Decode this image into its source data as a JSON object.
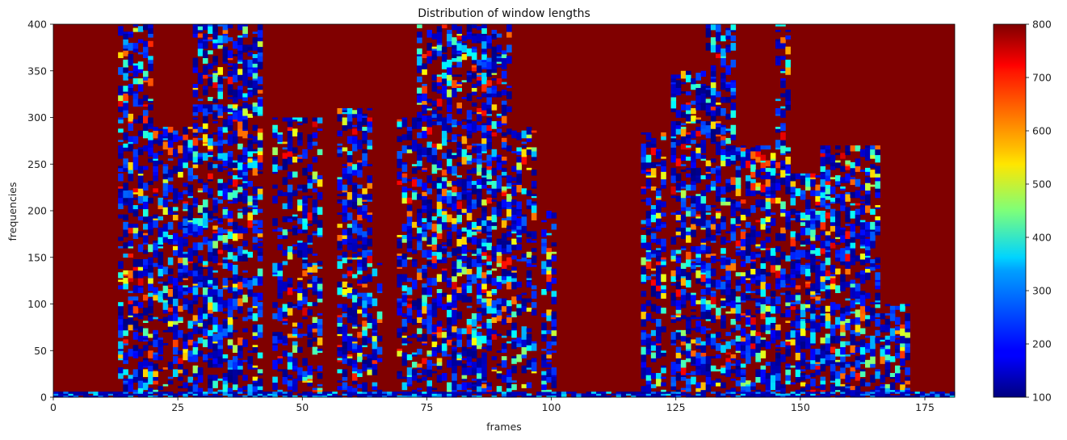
{
  "chart_data": {
    "type": "heatmap",
    "title": "Distribution of window lengths",
    "xlabel": "frames",
    "ylabel": "frequencies",
    "xlim": [
      0,
      181
    ],
    "ylim": [
      0,
      400
    ],
    "xticks": [
      0,
      25,
      50,
      75,
      100,
      125,
      150,
      175
    ],
    "yticks": [
      0,
      50,
      100,
      150,
      200,
      250,
      300,
      350,
      400
    ],
    "colormap": "jet",
    "colorbar": {
      "min": 100,
      "max": 800,
      "ticks": [
        100,
        200,
        300,
        400,
        500,
        600,
        700,
        800
      ]
    },
    "background_value": 800,
    "grid": false,
    "active_columns": [
      {
        "x": [
          13,
          20
        ],
        "y": [
          0,
          400
        ],
        "density": 0.55
      },
      {
        "x": [
          20,
          30
        ],
        "y": [
          0,
          290
        ],
        "density": 0.6
      },
      {
        "x": [
          28,
          36
        ],
        "y": [
          0,
          400
        ],
        "density": 0.6
      },
      {
        "x": [
          36,
          42
        ],
        "y": [
          0,
          400
        ],
        "density": 0.55
      },
      {
        "x": [
          44,
          54
        ],
        "y": [
          0,
          300
        ],
        "density": 0.5
      },
      {
        "x": [
          57,
          64
        ],
        "y": [
          0,
          310
        ],
        "density": 0.6
      },
      {
        "x": [
          64,
          66
        ],
        "y": [
          0,
          150
        ],
        "density": 0.5
      },
      {
        "x": [
          69,
          74
        ],
        "y": [
          0,
          300
        ],
        "density": 0.5
      },
      {
        "x": [
          73,
          80
        ],
        "y": [
          0,
          400
        ],
        "density": 0.55
      },
      {
        "x": [
          80,
          88
        ],
        "y": [
          0,
          400
        ],
        "density": 0.6
      },
      {
        "x": [
          88,
          92
        ],
        "y": [
          0,
          400
        ],
        "density": 0.5
      },
      {
        "x": [
          92,
          97
        ],
        "y": [
          0,
          290
        ],
        "density": 0.45
      },
      {
        "x": [
          98,
          101
        ],
        "y": [
          0,
          200
        ],
        "density": 0.45
      },
      {
        "x": [
          118,
          123
        ],
        "y": [
          0,
          285
        ],
        "density": 0.6
      },
      {
        "x": [
          124,
          132
        ],
        "y": [
          0,
          350
        ],
        "density": 0.6
      },
      {
        "x": [
          131,
          137
        ],
        "y": [
          0,
          400
        ],
        "density": 0.55
      },
      {
        "x": [
          136,
          146
        ],
        "y": [
          0,
          270
        ],
        "density": 0.6
      },
      {
        "x": [
          145,
          148
        ],
        "y": [
          0,
          400
        ],
        "density": 0.5
      },
      {
        "x": [
          148,
          154
        ],
        "y": [
          0,
          240
        ],
        "density": 0.6
      },
      {
        "x": [
          154,
          166
        ],
        "y": [
          0,
          270
        ],
        "density": 0.6
      },
      {
        "x": [
          165,
          172
        ],
        "y": [
          0,
          100
        ],
        "density": 0.55
      }
    ],
    "bottom_band": {
      "y": [
        0,
        5
      ],
      "value": 150
    }
  }
}
